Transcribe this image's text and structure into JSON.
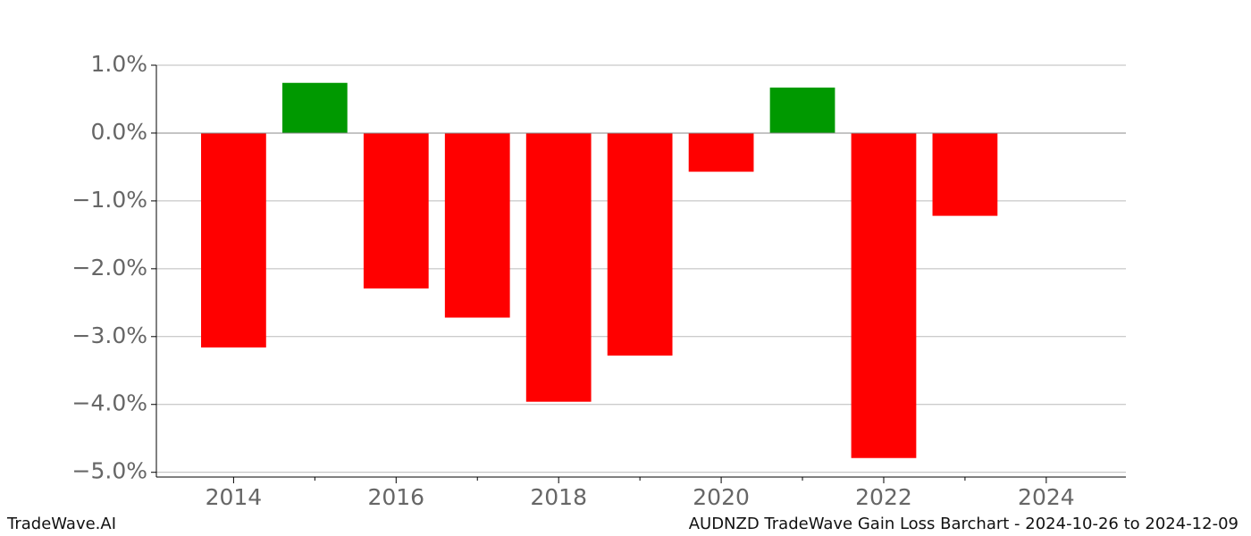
{
  "chart_data": {
    "type": "bar",
    "title": "AUDNZD TradeWave Gain Loss Barchart - 2024-10-26 to 2024-12-09",
    "watermark": "TradeWave.AI",
    "x": [
      2014,
      2015,
      2016,
      2017,
      2018,
      2019,
      2020,
      2021,
      2022,
      2023
    ],
    "values": [
      -3.16,
      0.74,
      -2.29,
      -2.72,
      -3.96,
      -3.28,
      -0.57,
      0.67,
      -4.79,
      -1.22
    ],
    "colors": [
      "#ff0000",
      "#009900",
      "#ff0000",
      "#ff0000",
      "#ff0000",
      "#ff0000",
      "#ff0000",
      "#009900",
      "#ff0000",
      "#ff0000"
    ],
    "xlim": [
      2013.05,
      2024.98
    ],
    "xticks": [
      2014,
      2016,
      2018,
      2020,
      2022,
      2024
    ],
    "xticks_minor": [
      2015,
      2017,
      2019,
      2021,
      2023
    ],
    "ylim": [
      -5.07,
      1.0
    ],
    "yticks": [
      {
        "value": 1,
        "label": "1.0%"
      },
      {
        "value": 0,
        "label": "0.0%"
      },
      {
        "value": -1,
        "label": "−1.0%"
      },
      {
        "value": -2,
        "label": "−2.0%"
      },
      {
        "value": -3,
        "label": "−3.0%"
      },
      {
        "value": -4,
        "label": "−4.0%"
      },
      {
        "value": -5,
        "label": "−5.0%"
      }
    ],
    "grid": true
  }
}
